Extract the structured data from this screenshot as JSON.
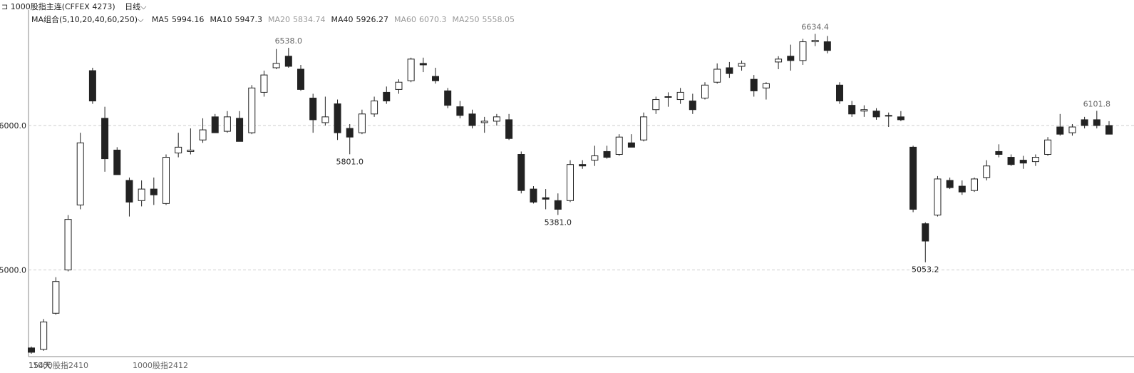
{
  "header": {
    "symbol": "1000股指主连(CFFEX 4273)",
    "period": "日线",
    "ma_group": "MA组合(5,10,20,40,60,250)",
    "ma_values": [
      {
        "name": "MA5",
        "value": 5994.16,
        "color": "#222222"
      },
      {
        "name": "MA10",
        "value": 5947.3,
        "color": "#222222"
      },
      {
        "name": "MA20",
        "value": 5834.74,
        "color": "#999999"
      },
      {
        "name": "MA40",
        "value": 5926.27,
        "color": "#222222"
      },
      {
        "name": "MA60",
        "value": 6070.3,
        "color": "#999999"
      },
      {
        "name": "MA250",
        "value": 5558.05,
        "color": "#999999"
      }
    ]
  },
  "footer": {
    "days": "154天",
    "contracts": [
      "1000股指2410",
      "1000股指2412"
    ]
  },
  "chart_data": {
    "type": "candlestick",
    "up_color": "#ffffff",
    "down_color": "#222222",
    "stroke_color": "#222222",
    "ylim": [
      4400,
      6800
    ],
    "yticks": [
      {
        "value": 5000,
        "label": "5000.0"
      },
      {
        "value": 6000,
        "label": "6000.0"
      }
    ],
    "grid": true,
    "open": [
      4460,
      4450,
      4700,
      5000,
      5450,
      6380,
      6050,
      5830,
      5620,
      5480,
      5560,
      5460,
      5810,
      5820,
      5900,
      6060,
      5960,
      6050,
      5950,
      6230,
      6400,
      6480,
      6390,
      6190,
      6020,
      6150,
      5980,
      5950,
      6080,
      6230,
      6250,
      6310,
      6430,
      6340,
      6240,
      6130,
      6080,
      6020,
      6030,
      6040,
      5800,
      5560,
      5500,
      5480,
      5480,
      5730,
      5760,
      5820,
      5800,
      5880,
      5900,
      6110,
      6200,
      6180,
      6170,
      6190,
      6300,
      6400,
      6410,
      6320,
      6260,
      6440,
      6480,
      6450,
      6580,
      6580,
      6280,
      6140,
      6100,
      6100,
      6070,
      6060,
      5850,
      5320,
      5380,
      5620,
      5580,
      5550,
      5640,
      5820,
      5780,
      5760,
      5750,
      5800,
      5990,
      5950,
      6040,
      6040,
      6000
    ],
    "high": [
      4470,
      4660,
      4950,
      5380,
      5950,
      6400,
      6130,
      5850,
      5640,
      5620,
      5640,
      5800,
      5950,
      5980,
      6050,
      6080,
      6100,
      6100,
      6280,
      6380,
      6530,
      6538,
      6420,
      6220,
      6200,
      6180,
      6010,
      6110,
      6200,
      6270,
      6320,
      6470,
      6470,
      6400,
      6260,
      6170,
      6110,
      6060,
      6080,
      6080,
      5820,
      5580,
      5560,
      5530,
      5760,
      5760,
      5860,
      5860,
      5940,
      5940,
      6090,
      6200,
      6230,
      6260,
      6220,
      6300,
      6430,
      6440,
      6450,
      6350,
      6300,
      6480,
      6560,
      6600,
      6634.4,
      6620,
      6300,
      6170,
      6140,
      6120,
      6090,
      6100,
      5860,
      5330,
      5650,
      5640,
      5620,
      5640,
      5760,
      5870,
      5800,
      5790,
      5800,
      5920,
      6080,
      6010,
      6060,
      6101.8,
      6030
    ],
    "low": [
      4420,
      4440,
      4690,
      4990,
      5420,
      6150,
      5680,
      5660,
      5370,
      5440,
      5450,
      5450,
      5780,
      5800,
      5880,
      5950,
      5950,
      5910,
      5940,
      6200,
      6390,
      6400,
      6240,
      5950,
      6000,
      5900,
      5801,
      5940,
      6060,
      6150,
      6220,
      6300,
      6370,
      6290,
      6120,
      6050,
      5980,
      5950,
      6000,
      5900,
      5530,
      5460,
      5420,
      5381,
      5470,
      5700,
      5720,
      5770,
      5790,
      5850,
      5890,
      6080,
      6130,
      6150,
      6080,
      6180,
      6290,
      6330,
      6380,
      6200,
      6180,
      6390,
      6380,
      6420,
      6550,
      6500,
      6150,
      6060,
      6060,
      6040,
      5990,
      6030,
      5400,
      5053.2,
      5370,
      5560,
      5520,
      5540,
      5620,
      5780,
      5720,
      5700,
      5720,
      5790,
      5930,
      5930,
      5980,
      5980,
      5940
    ],
    "close": [
      4430,
      4640,
      4920,
      5350,
      5880,
      6170,
      5770,
      5660,
      5470,
      5560,
      5520,
      5780,
      5850,
      5830,
      5970,
      5950,
      6060,
      5890,
      6260,
      6350,
      6430,
      6410,
      6250,
      6040,
      6060,
      5950,
      5920,
      6080,
      6170,
      6170,
      6300,
      6460,
      6420,
      6310,
      6140,
      6070,
      6000,
      6030,
      6060,
      5910,
      5550,
      5470,
      5490,
      5420,
      5730,
      5720,
      5790,
      5780,
      5920,
      5850,
      6060,
      6180,
      6200,
      6230,
      6110,
      6280,
      6390,
      6360,
      6430,
      6240,
      6290,
      6460,
      6450,
      6580,
      6590,
      6520,
      6170,
      6080,
      6110,
      6060,
      6070,
      6040,
      5420,
      5200,
      5630,
      5570,
      5540,
      5630,
      5720,
      5800,
      5730,
      5740,
      5780,
      5900,
      5940,
      5990,
      6000,
      6000,
      5940
    ],
    "annotations": [
      {
        "label": "6538.0",
        "value": 6538
      },
      {
        "label": "5801.0",
        "value": 5801
      },
      {
        "label": "5381.0",
        "value": 5381
      },
      {
        "label": "6634.4",
        "value": 6634.4
      },
      {
        "label": "6101.8",
        "value": 6101.8
      },
      {
        "label": "5053.2",
        "value": 5053.2
      }
    ]
  }
}
